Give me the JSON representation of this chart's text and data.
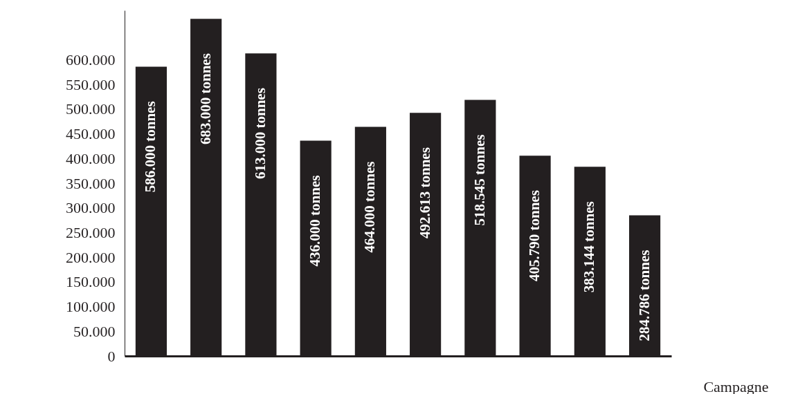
{
  "chart_data": {
    "type": "bar",
    "xlabel": "Campagne",
    "categories": [
      null,
      null,
      null,
      null,
      null,
      null,
      null,
      null,
      null,
      null
    ],
    "values": [
      586000,
      683000,
      613000,
      436000,
      464000,
      492613,
      518545,
      405790,
      383144,
      284786
    ],
    "value_labels": [
      "586.000 tonnes",
      "683.000 tonnes",
      "613.000 tonnes",
      "436.000 tonnes",
      "464.000 tonnes",
      "492.613 tonnes",
      "518.545 tonnes",
      "405.790 tonnes",
      "383.144 tonnes",
      "284.786 tonnes"
    ],
    "color": "#231f20",
    "ylim": [
      0,
      700000
    ],
    "yticks": [
      0,
      {
        "value": 50000,
        "label": "50.000"
      },
      {
        "value": 100000,
        "label": "100.000"
      },
      {
        "value": 150000,
        "label": "150.000"
      },
      {
        "value": 200000,
        "label": "200.000"
      },
      {
        "value": 250000,
        "label": "250.000"
      },
      {
        "value": 300000,
        "label": "300.000"
      },
      {
        "value": 350000,
        "label": "350.000"
      },
      {
        "value": 400000,
        "label": "400.000"
      },
      {
        "value": 450000,
        "label": "450.000"
      },
      {
        "value": 500000,
        "label": "500.000"
      },
      {
        "value": 550000,
        "label": "550.000"
      },
      {
        "value": 600000,
        "label": "600.000"
      }
    ],
    "grid": false
  }
}
